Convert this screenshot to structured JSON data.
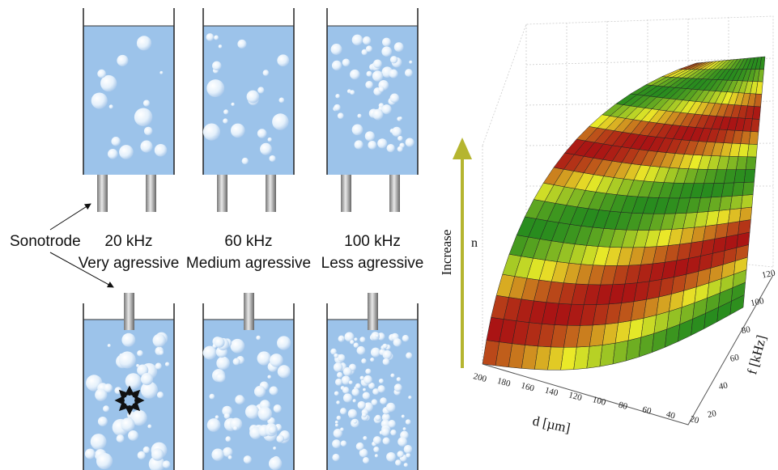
{
  "sonotrode_label": "Sonotrode",
  "tanks": [
    {
      "frequency": "20 kHz",
      "description": "Very agressive"
    },
    {
      "frequency": "60 kHz",
      "description": "Medium agressive"
    },
    {
      "frequency": "100 kHz",
      "description": "Less agressive"
    }
  ],
  "plot": {
    "arrow_label": "Increase",
    "z_label": "n",
    "x_label": "d [µm]",
    "y_label": "f [kHz]",
    "x_ticks": [
      200,
      180,
      160,
      140,
      120,
      100,
      80,
      60,
      40,
      20
    ],
    "y_ticks": [
      20,
      40,
      60,
      80,
      100,
      120
    ]
  }
}
